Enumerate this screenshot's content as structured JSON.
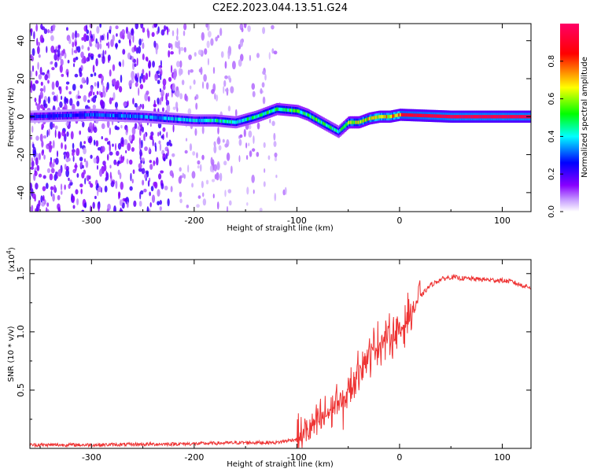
{
  "figure": {
    "title": "C2E2.2023.044.13.51.G24"
  },
  "chart_data": [
    {
      "type": "heatmap",
      "xlabel": "Height of straight line (km)",
      "ylabel": "Frequency (Hz)",
      "xlim": [
        -360,
        128
      ],
      "ylim": [
        -50,
        49
      ],
      "x_ticks": [
        -300,
        -200,
        -100,
        0,
        100
      ],
      "y_ticks": [
        -40,
        -20,
        0,
        20,
        40
      ],
      "colorbar": {
        "label": "Normalized spectral amplitude",
        "range": [
          0.0,
          1.0
        ],
        "ticks": [
          0.0,
          0.2,
          0.4,
          0.6,
          0.8
        ],
        "colormap": [
          "#ffffff",
          "#8800ff",
          "#0000ff",
          "#00ffff",
          "#00ff00",
          "#ffff00",
          "#ff0000",
          "#ff0066"
        ]
      },
      "ridge": {
        "x": [
          -360,
          -300,
          -250,
          -200,
          -180,
          -160,
          -140,
          -120,
          -100,
          -90,
          -80,
          -70,
          -60,
          -50,
          -40,
          -30,
          -20,
          -10,
          0,
          50,
          100,
          128
        ],
        "frequency": [
          0,
          1,
          0,
          -2,
          -2,
          -3,
          0,
          4,
          3,
          1,
          -2,
          -5,
          -8,
          -3,
          -3,
          -1,
          0,
          0,
          1,
          0,
          0,
          0
        ],
        "amplitude": [
          0.3,
          0.35,
          0.4,
          0.45,
          0.5,
          0.5,
          0.55,
          0.6,
          0.6,
          0.6,
          0.6,
          0.55,
          0.55,
          0.7,
          0.75,
          0.8,
          0.85,
          0.85,
          0.9,
          0.95,
          0.95,
          0.95
        ]
      }
    },
    {
      "type": "line",
      "xlabel": "Height of straight line (km)",
      "ylabel": "SNR (10 * v/v)",
      "y_multiplier": "(x10",
      "y_multiplier_exp": "4",
      "y_multiplier_close": ")",
      "xlim": [
        -360,
        128
      ],
      "ylim": [
        0,
        1.62
      ],
      "x_ticks": [
        -300,
        -200,
        -100,
        0,
        100
      ],
      "y_ticks": [
        0.5,
        1.0,
        1.5
      ],
      "y_tick_labels": [
        "0.5",
        "1.0",
        "1.5"
      ],
      "series": [
        {
          "color": "#ee3333",
          "x": [
            -360,
            -300,
            -200,
            -150,
            -120,
            -100,
            -90,
            -80,
            -70,
            -60,
            -55,
            -50,
            -45,
            -40,
            -35,
            -30,
            -25,
            -20,
            -10,
            0,
            10,
            20,
            30,
            40,
            50,
            60,
            80,
            100,
            110,
            115,
            128
          ],
          "y": [
            0.03,
            0.03,
            0.04,
            0.05,
            0.05,
            0.08,
            0.15,
            0.22,
            0.3,
            0.4,
            0.35,
            0.5,
            0.55,
            0.7,
            0.75,
            0.8,
            0.85,
            0.9,
            0.95,
            1.0,
            1.15,
            1.3,
            1.4,
            1.45,
            1.47,
            1.46,
            1.45,
            1.44,
            1.43,
            1.41,
            1.38
          ]
        }
      ]
    }
  ]
}
